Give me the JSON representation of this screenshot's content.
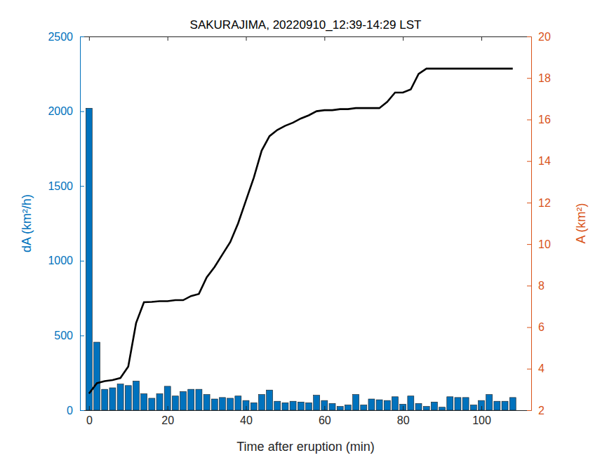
{
  "chart_data": {
    "type": "bar",
    "title": "SAKURAJIMA, 20220910_12:39-14:29 LST",
    "x_label": "Time after eruption (min)",
    "y_label": "dA (km²/h)",
    "y2_label": "A (km²)",
    "x": [
      0,
      2,
      4,
      6,
      8,
      10,
      12,
      14,
      16,
      18,
      20,
      22,
      24,
      26,
      28,
      30,
      32,
      34,
      36,
      38,
      40,
      42,
      44,
      46,
      48,
      50,
      52,
      54,
      56,
      58,
      60,
      62,
      64,
      66,
      68,
      70,
      72,
      74,
      76,
      78,
      80,
      82,
      84,
      86,
      88,
      90,
      92,
      94,
      96,
      98,
      100,
      102,
      104,
      106,
      108
    ],
    "series": [
      {
        "name": "dA",
        "type": "bar",
        "axis": "y",
        "color": "#0072BD",
        "values": [
          2020,
          455,
          140,
          150,
          175,
          165,
          195,
          110,
          80,
          110,
          160,
          95,
          125,
          140,
          140,
          105,
          75,
          85,
          80,
          95,
          65,
          50,
          105,
          135,
          60,
          50,
          60,
          55,
          50,
          100,
          65,
          45,
          25,
          35,
          105,
          35,
          75,
          70,
          65,
          90,
          40,
          95,
          45,
          25,
          55,
          20,
          90,
          85,
          85,
          35,
          65,
          105,
          60,
          60,
          85
        ]
      },
      {
        "name": "A",
        "type": "line",
        "axis": "y2",
        "color": "#000000",
        "values": [
          2.8,
          3.3,
          3.4,
          3.45,
          3.55,
          4.1,
          6.2,
          7.2,
          7.22,
          7.25,
          7.25,
          7.3,
          7.3,
          7.5,
          7.6,
          8.4,
          8.9,
          9.5,
          10.1,
          11.0,
          12.1,
          13.2,
          14.5,
          15.2,
          15.5,
          15.7,
          15.85,
          16.05,
          16.2,
          16.4,
          16.45,
          16.45,
          16.5,
          16.5,
          16.55,
          16.55,
          16.55,
          16.55,
          16.85,
          17.3,
          17.3,
          17.45,
          18.2,
          18.45,
          18.45,
          18.45,
          18.45,
          18.45,
          18.45,
          18.45,
          18.45,
          18.45,
          18.45,
          18.45,
          18.45
        ]
      }
    ],
    "xlim": [
      -2.3,
      112.7
    ],
    "xticks": [
      0,
      20,
      40,
      60,
      80,
      100
    ],
    "ylim": [
      0,
      2500
    ],
    "yticks": [
      0,
      500,
      1000,
      1500,
      2000,
      2500
    ],
    "y2lim": [
      2,
      20
    ],
    "y2ticks": [
      2,
      4,
      6,
      8,
      10,
      12,
      14,
      16,
      18,
      20
    ]
  }
}
